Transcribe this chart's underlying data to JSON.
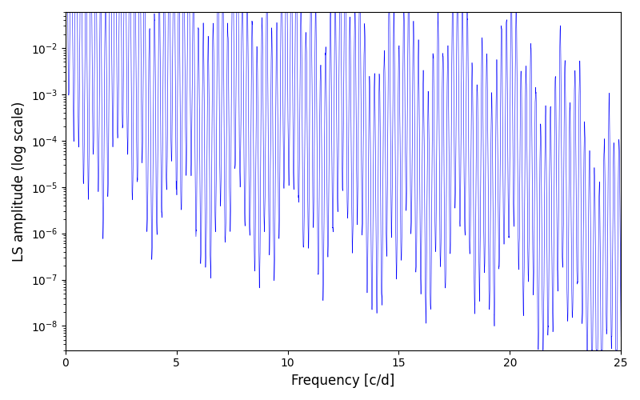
{
  "title": "",
  "xlabel": "Frequency [c/d]",
  "ylabel": "LS amplitude (log scale)",
  "xlim": [
    0,
    25
  ],
  "ylim": [
    3e-09,
    0.06
  ],
  "line_color": "#0000ff",
  "background_color": "#ffffff",
  "xlabel_fontsize": 12,
  "ylabel_fontsize": 12,
  "figsize": [
    8.0,
    5.0
  ],
  "dpi": 100,
  "freq_max": 25.0,
  "n_points": 8000,
  "seed": 12345
}
